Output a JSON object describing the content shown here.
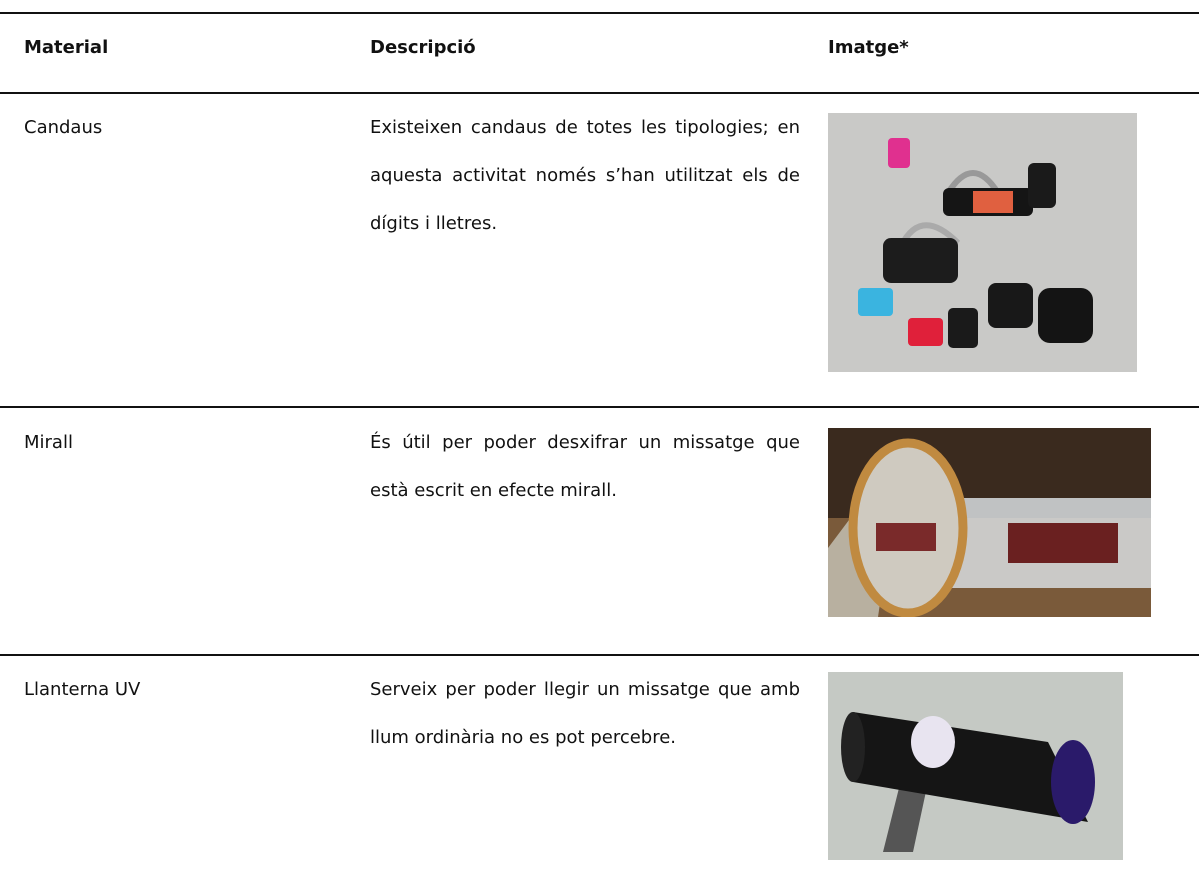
{
  "table": {
    "headers": [
      "Material",
      "Descripció",
      "Imatge*"
    ],
    "rows": [
      [
        "Candaus",
        "Existeixen candaus de totes les tipologies; en aquesta activitat només s’han utilitzat els de dígits i lletres."
      ],
      [
        "Mirall",
        "És útil per poder desxifrar un missatge que està escrit en efecte mirall."
      ],
      [
        "Llanterna UV",
        "Serveix per poder llegir un missatge que amb llum ordinària no es pot percebre."
      ]
    ]
  }
}
